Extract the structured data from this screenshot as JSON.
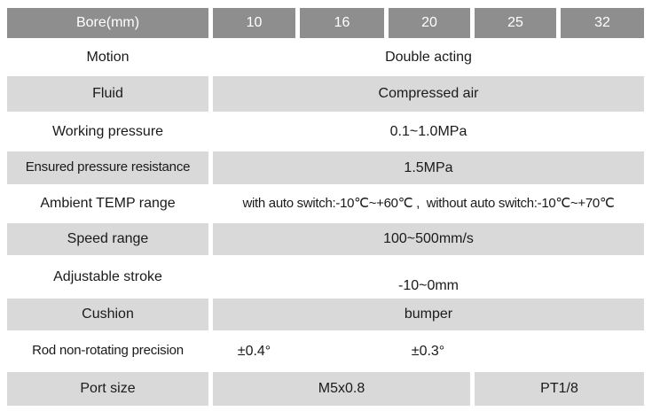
{
  "colors": {
    "header_bg": "#8e8e8e",
    "header_text": "#ffffff",
    "row_band_bg": "#d9d9d9",
    "text_color": "#1a1a1a",
    "page_bg": "#ffffff"
  },
  "table": {
    "header": {
      "label": "Bore(mm)",
      "columns": [
        "10",
        "16",
        "20",
        "25",
        "32"
      ]
    },
    "rows": [
      {
        "label": "Motion",
        "value": "Double acting"
      },
      {
        "label": "Fluid",
        "value": "Compressed air"
      },
      {
        "label": "Working pressure",
        "value": "0.1~1.0MPa"
      },
      {
        "label": "Ensured pressure resistance",
        "value": "1.5MPa"
      },
      {
        "label": "Ambient TEMP range",
        "value": "with auto switch:-10℃~+60℃ ,  without auto switch:-10℃~+70℃"
      },
      {
        "label": "Speed range",
        "value": "100~500mm/s"
      },
      {
        "label": "Adjustable stroke",
        "value": "-10~0mm"
      },
      {
        "label": "Cushion",
        "value": "bumper"
      },
      {
        "label": "Rod non-rotating precision",
        "value_bore10": "±0.4°",
        "value_others": "±0.3°"
      },
      {
        "label": "Port size",
        "value_small_bores": "M5x0.8",
        "value_large_bores": "PT1/8"
      }
    ]
  }
}
